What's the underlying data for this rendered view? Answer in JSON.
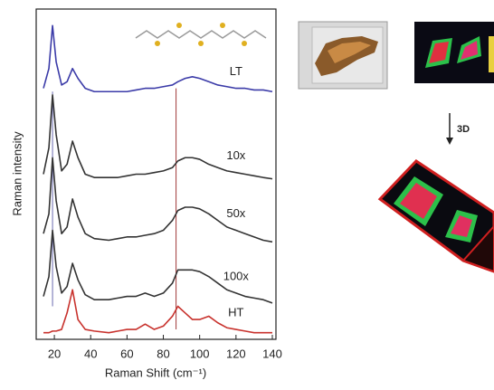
{
  "chart_data": {
    "type": "line",
    "xlabel": "Raman Shift (cm⁻¹)",
    "ylabel": "Raman intensity",
    "annotation": "3D",
    "x": [
      14,
      17,
      19,
      21,
      24,
      27,
      30,
      33,
      37,
      42,
      50,
      55,
      60,
      65,
      70,
      75,
      80,
      85,
      88,
      92,
      96,
      100,
      105,
      110,
      115,
      120,
      125,
      130,
      135,
      140
    ],
    "series": [
      {
        "name": "LT",
        "color": "#3b3ba8",
        "values": [
          76,
          82,
          95,
          84,
          77,
          78,
          82,
          79,
          76,
          75,
          75,
          75,
          75,
          75.5,
          76,
          76,
          76.5,
          77,
          78,
          79,
          79.5,
          79,
          78,
          77,
          76.5,
          76,
          76,
          75.5,
          75.5,
          75
        ]
      },
      {
        "name": "10x",
        "color": "#333333",
        "values": [
          50,
          58,
          74,
          62,
          51,
          53,
          60,
          55,
          50,
          49,
          49,
          49,
          49.5,
          50,
          50,
          50.5,
          51,
          52,
          54,
          55,
          55,
          54.5,
          53,
          52,
          51,
          50.5,
          50,
          49.5,
          49,
          48.6
        ]
      },
      {
        "name": "50x",
        "color": "#333333",
        "values": [
          32,
          38,
          55,
          42,
          32,
          34,
          42.5,
          37,
          32,
          30.5,
          30,
          30.5,
          31,
          31,
          31.5,
          32,
          33,
          36,
          39,
          40,
          40,
          39.5,
          38,
          36,
          34,
          33,
          32,
          31,
          30,
          29.5
        ]
      },
      {
        "name": "100x",
        "color": "#333333",
        "values": [
          13,
          19,
          33,
          22,
          14,
          16,
          23,
          18,
          13.5,
          12,
          12,
          12.5,
          13,
          13,
          14,
          13,
          14,
          17,
          21,
          21,
          21,
          20.5,
          19,
          17,
          15,
          14,
          13,
          12.5,
          12,
          11
        ]
      },
      {
        "name": "HT",
        "color": "#c8322d",
        "values": [
          2,
          2,
          2.5,
          2.5,
          3,
          8,
          15,
          6,
          3,
          2.5,
          2,
          2.5,
          3,
          3,
          4.6,
          3,
          4,
          7,
          10,
          8,
          6,
          6,
          7,
          5,
          3.5,
          3,
          2.5,
          2,
          2,
          2
        ]
      }
    ],
    "vlines": [
      {
        "x": 19,
        "color": "#6a6ab0"
      },
      {
        "x": 87,
        "color": "#a03a3a"
      }
    ],
    "xlim": [
      10,
      142
    ],
    "xticks": [
      20,
      40,
      60,
      80,
      100,
      120,
      140
    ],
    "ylim": [
      0,
      100
    ]
  }
}
